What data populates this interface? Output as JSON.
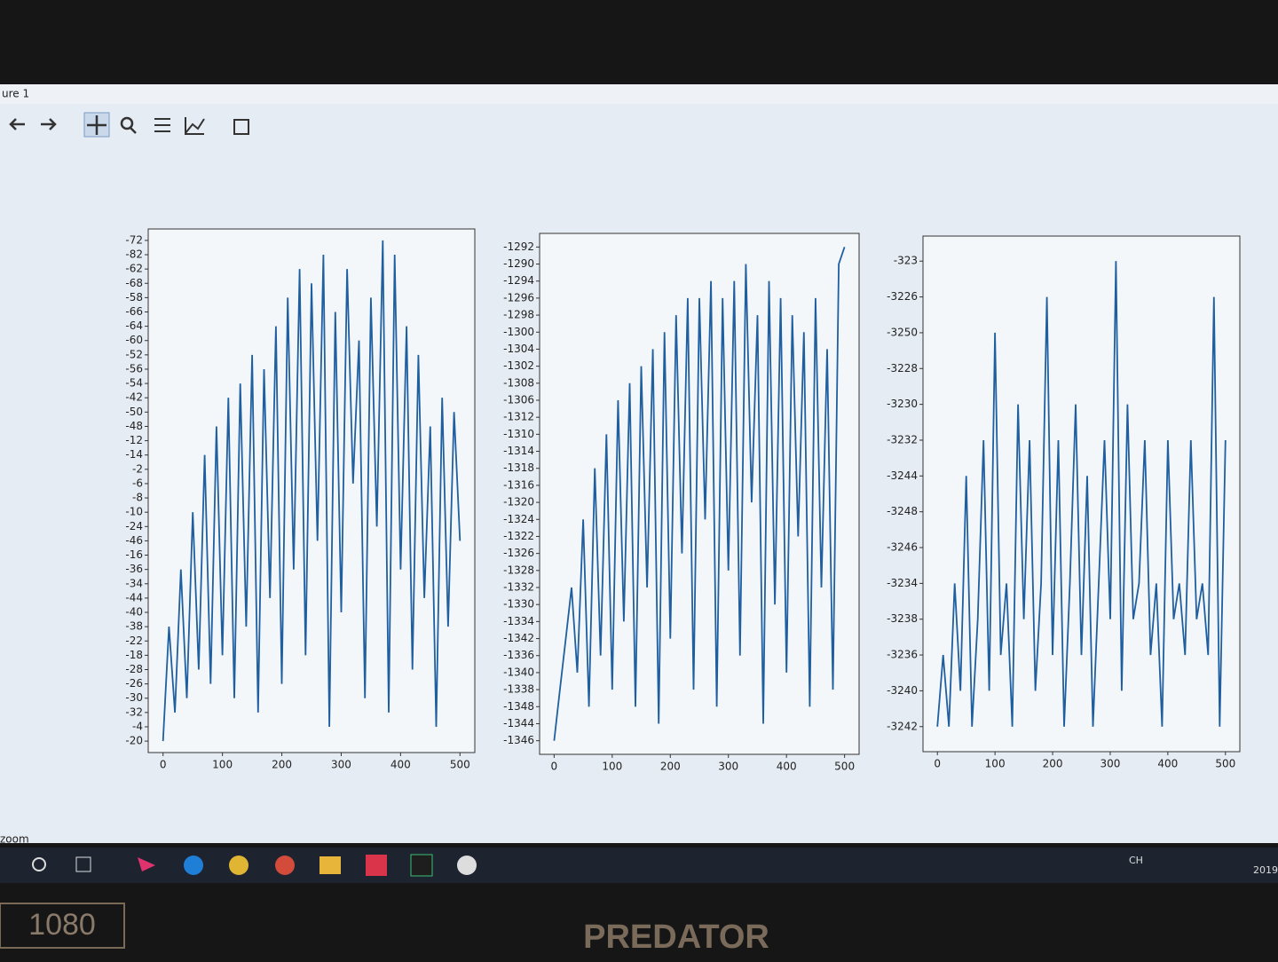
{
  "window": {
    "title": "ure 1",
    "status": "zoom"
  },
  "taskbar": {
    "language": "CH",
    "clock": "2019"
  },
  "bezel": {
    "brand": "PREDATOR",
    "badge": "1080"
  },
  "chart_data": [
    {
      "type": "line",
      "color": "#1f5fa0",
      "x": [
        0,
        10,
        20,
        30,
        40,
        50,
        60,
        70,
        80,
        90,
        100,
        110,
        120,
        130,
        140,
        150,
        160,
        170,
        180,
        190,
        200,
        210,
        220,
        230,
        240,
        250,
        260,
        270,
        280,
        290,
        300,
        310,
        320,
        330,
        340,
        350,
        360,
        370,
        380,
        390,
        400,
        410,
        420,
        430,
        440,
        450,
        460,
        470,
        480,
        490,
        500
      ],
      "values": [
        0,
        8,
        2,
        12,
        3,
        16,
        5,
        20,
        4,
        22,
        6,
        24,
        3,
        25,
        8,
        27,
        2,
        26,
        10,
        29,
        4,
        31,
        12,
        33,
        6,
        32,
        14,
        34,
        1,
        30,
        9,
        33,
        18,
        28,
        3,
        31,
        15,
        35,
        2,
        34,
        12,
        29,
        5,
        27,
        10,
        22,
        1,
        24,
        8,
        23,
        14
      ],
      "xlim": [
        -25,
        525
      ],
      "xticks": [
        0,
        100,
        200,
        300,
        400,
        500
      ],
      "ylim": [
        -0.8,
        35.8
      ],
      "yticks": [
        {
          "value": 0,
          "label": "-20"
        },
        {
          "value": 1,
          "label": "-4"
        },
        {
          "value": 2,
          "label": "-32"
        },
        {
          "value": 3,
          "label": "-30"
        },
        {
          "value": 4,
          "label": "-26"
        },
        {
          "value": 5,
          "label": "-28"
        },
        {
          "value": 6,
          "label": "-18"
        },
        {
          "value": 7,
          "label": "-22"
        },
        {
          "value": 8,
          "label": "-38"
        },
        {
          "value": 9,
          "label": "-40"
        },
        {
          "value": 10,
          "label": "-44"
        },
        {
          "value": 11,
          "label": "-34"
        },
        {
          "value": 12,
          "label": "-36"
        },
        {
          "value": 13,
          "label": "-16"
        },
        {
          "value": 14,
          "label": "-46"
        },
        {
          "value": 15,
          "label": "-24"
        },
        {
          "value": 16,
          "label": "-10"
        },
        {
          "value": 17,
          "label": "-8"
        },
        {
          "value": 18,
          "label": "-6"
        },
        {
          "value": 19,
          "label": "-2"
        },
        {
          "value": 20,
          "label": "-14"
        },
        {
          "value": 21,
          "label": "-12"
        },
        {
          "value": 22,
          "label": "-48"
        },
        {
          "value": 23,
          "label": "-50"
        },
        {
          "value": 24,
          "label": "-42"
        },
        {
          "value": 25,
          "label": "-54"
        },
        {
          "value": 26,
          "label": "-56"
        },
        {
          "value": 27,
          "label": "-52"
        },
        {
          "value": 28,
          "label": "-60"
        },
        {
          "value": 29,
          "label": "-64"
        },
        {
          "value": 30,
          "label": "-66"
        },
        {
          "value": 31,
          "label": "-58"
        },
        {
          "value": 32,
          "label": "-68"
        },
        {
          "value": 33,
          "label": "-62"
        },
        {
          "value": 34,
          "label": "-82"
        },
        {
          "value": 35,
          "label": "-72"
        }
      ]
    },
    {
      "type": "line",
      "color": "#1f5fa0",
      "x": [
        0,
        10,
        20,
        30,
        40,
        50,
        60,
        70,
        80,
        90,
        100,
        110,
        120,
        130,
        140,
        150,
        160,
        170,
        180,
        190,
        200,
        210,
        220,
        230,
        240,
        250,
        260,
        270,
        280,
        290,
        300,
        310,
        320,
        330,
        340,
        350,
        360,
        370,
        380,
        390,
        400,
        410,
        420,
        430,
        440,
        450,
        460,
        470,
        480,
        490,
        500
      ],
      "values": [
        0,
        3,
        6,
        9,
        4,
        13,
        2,
        16,
        5,
        18,
        3,
        20,
        7,
        21,
        2,
        22,
        9,
        23,
        1,
        24,
        6,
        25,
        11,
        26,
        3,
        26,
        13,
        27,
        2,
        26,
        10,
        27,
        5,
        28,
        14,
        25,
        1,
        27,
        8,
        26,
        4,
        25,
        12,
        24,
        2,
        26,
        9,
        23,
        3,
        28,
        29
      ],
      "xlim": [
        -25,
        525
      ],
      "xticks": [
        0,
        100,
        200,
        300,
        400,
        500
      ],
      "ylim": [
        -0.8,
        29.8
      ],
      "yticks": [
        {
          "value": 0,
          "label": "-1346"
        },
        {
          "value": 1,
          "label": "-1344"
        },
        {
          "value": 2,
          "label": "-1348"
        },
        {
          "value": 3,
          "label": "-1338"
        },
        {
          "value": 4,
          "label": "-1340"
        },
        {
          "value": 5,
          "label": "-1336"
        },
        {
          "value": 6,
          "label": "-1342"
        },
        {
          "value": 7,
          "label": "-1334"
        },
        {
          "value": 8,
          "label": "-1330"
        },
        {
          "value": 9,
          "label": "-1332"
        },
        {
          "value": 10,
          "label": "-1328"
        },
        {
          "value": 11,
          "label": "-1326"
        },
        {
          "value": 12,
          "label": "-1322"
        },
        {
          "value": 13,
          "label": "-1324"
        },
        {
          "value": 14,
          "label": "-1320"
        },
        {
          "value": 15,
          "label": "-1316"
        },
        {
          "value": 16,
          "label": "-1318"
        },
        {
          "value": 17,
          "label": "-1314"
        },
        {
          "value": 18,
          "label": "-1310"
        },
        {
          "value": 19,
          "label": "-1312"
        },
        {
          "value": 20,
          "label": "-1306"
        },
        {
          "value": 21,
          "label": "-1308"
        },
        {
          "value": 22,
          "label": "-1302"
        },
        {
          "value": 23,
          "label": "-1304"
        },
        {
          "value": 24,
          "label": "-1300"
        },
        {
          "value": 25,
          "label": "-1298"
        },
        {
          "value": 26,
          "label": "-1296"
        },
        {
          "value": 27,
          "label": "-1294"
        },
        {
          "value": 28,
          "label": "-1290"
        },
        {
          "value": 29,
          "label": "-1292"
        }
      ]
    },
    {
      "type": "line",
      "color": "#1f5fa0",
      "x": [
        0,
        10,
        20,
        30,
        40,
        50,
        60,
        70,
        80,
        90,
        100,
        110,
        120,
        130,
        140,
        150,
        160,
        170,
        180,
        190,
        200,
        210,
        220,
        230,
        240,
        250,
        260,
        270,
        280,
        290,
        300,
        310,
        320,
        330,
        340,
        350,
        360,
        370,
        380,
        390,
        400,
        410,
        420,
        430,
        440,
        450,
        460,
        470,
        480,
        490,
        500
      ],
      "values": [
        0,
        2,
        0,
        4,
        1,
        7,
        0,
        3,
        8,
        1,
        11,
        2,
        4,
        0,
        9,
        3,
        8,
        1,
        4,
        12,
        2,
        8,
        0,
        4,
        9,
        2,
        7,
        0,
        4,
        8,
        3,
        13,
        1,
        9,
        3,
        4,
        8,
        2,
        4,
        0,
        8,
        3,
        4,
        2,
        8,
        3,
        4,
        2,
        12,
        0,
        8
      ],
      "xlim": [
        -25,
        525
      ],
      "xticks": [
        0,
        100,
        200,
        300,
        400,
        500
      ],
      "ylim": [
        -0.7,
        13.7
      ],
      "yticks": [
        {
          "value": 0,
          "label": "-3242"
        },
        {
          "value": 1,
          "label": "-3240"
        },
        {
          "value": 2,
          "label": "-3236"
        },
        {
          "value": 3,
          "label": "-3238"
        },
        {
          "value": 4,
          "label": "-3234"
        },
        {
          "value": 5,
          "label": "-3246"
        },
        {
          "value": 6,
          "label": "-3248"
        },
        {
          "value": 7,
          "label": "-3244"
        },
        {
          "value": 8,
          "label": "-3232"
        },
        {
          "value": 9,
          "label": "-3230"
        },
        {
          "value": 10,
          "label": "-3228"
        },
        {
          "value": 11,
          "label": "-3250"
        },
        {
          "value": 12,
          "label": "-3226"
        },
        {
          "value": 13,
          "label": "-323"
        }
      ]
    }
  ]
}
